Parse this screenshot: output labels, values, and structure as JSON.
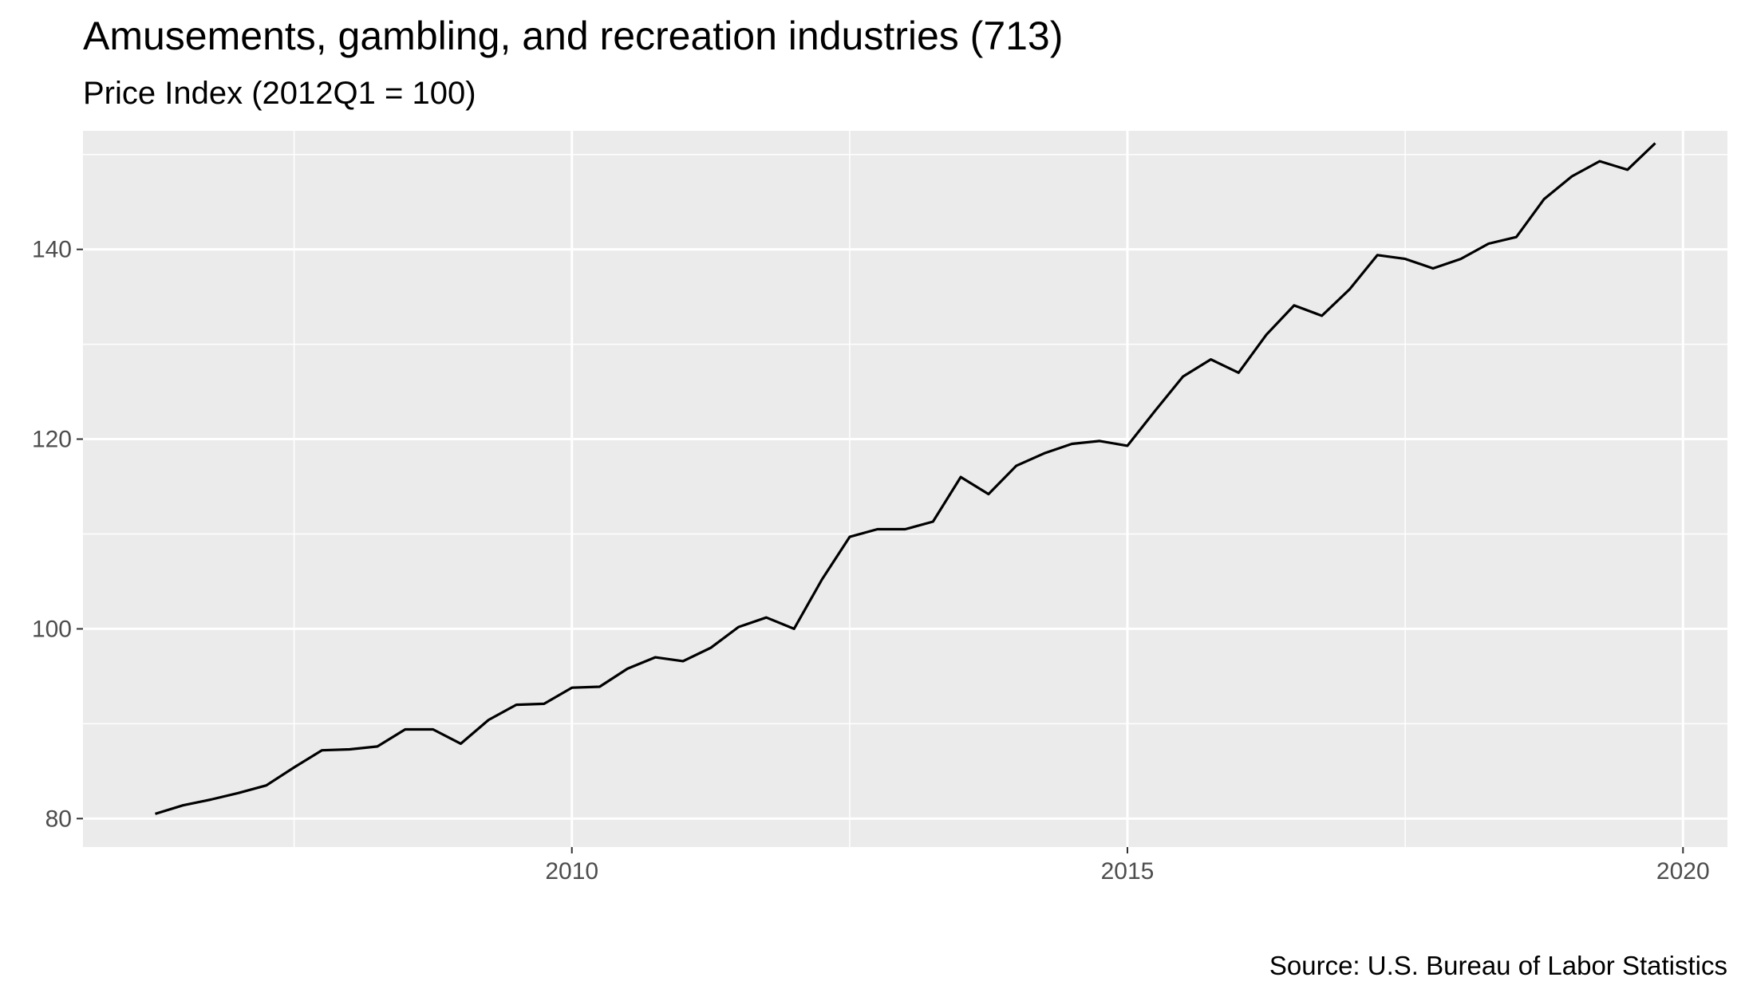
{
  "chart_data": {
    "type": "line",
    "title": "Amusements, gambling, and recreation industries (713)",
    "subtitle": "Price Index (2012Q1 = 100)",
    "xlabel": "",
    "ylabel": "",
    "caption": "Source: U.S. Bureau of Labor Statistics",
    "x_ticks": [
      "2010",
      "2015",
      "2020"
    ],
    "y_ticks": [
      "80",
      "100",
      "120",
      "140"
    ],
    "xlim": [
      2005.6,
      2020.4
    ],
    "ylim": [
      77.0,
      152.5
    ],
    "grid": true,
    "background": "#ebebeb",
    "line_color": "#000000",
    "series": [
      {
        "x": [
          2006.25,
          2006.5,
          2006.75,
          2007.0,
          2007.25,
          2007.5,
          2007.75,
          2008.0,
          2008.25,
          2008.5,
          2008.75,
          2009.0,
          2009.25,
          2009.5,
          2009.75,
          2010.0,
          2010.25,
          2010.5,
          2010.75,
          2011.0,
          2011.25,
          2011.5,
          2011.75,
          2012.0,
          2012.25,
          2012.5,
          2012.75,
          2013.0,
          2013.25,
          2013.5,
          2013.75,
          2014.0,
          2014.25,
          2014.5,
          2014.75,
          2015.0,
          2015.25,
          2015.5,
          2015.75,
          2016.0,
          2016.25,
          2016.5,
          2016.75,
          2017.0,
          2017.25,
          2017.5,
          2017.75,
          2018.0,
          2018.25,
          2018.5,
          2018.75,
          2019.0,
          2019.25,
          2019.5,
          2019.75
        ],
        "values": [
          80.5,
          81.4,
          82.0,
          82.7,
          83.5,
          85.4,
          87.2,
          87.3,
          87.6,
          89.4,
          89.4,
          87.9,
          90.4,
          92.0,
          92.1,
          93.8,
          93.9,
          95.8,
          97.0,
          96.6,
          98.0,
          100.2,
          101.2,
          100.0,
          105.2,
          109.7,
          110.5,
          110.5,
          111.3,
          116.0,
          114.2,
          117.2,
          118.5,
          119.5,
          119.8,
          119.3,
          123.0,
          126.6,
          128.4,
          127.0,
          131.0,
          134.1,
          133.0,
          135.8,
          139.4,
          139.0,
          138.0,
          139.0,
          140.6,
          141.3,
          145.3,
          147.7,
          149.3,
          148.4,
          151.2
        ]
      }
    ]
  }
}
